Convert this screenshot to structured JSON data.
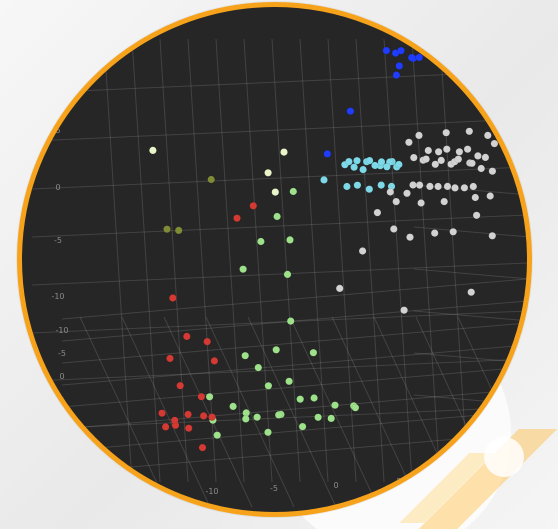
{
  "page": {
    "frame_color": "#f7a21b",
    "plot_background": "#262626"
  },
  "chart_data": {
    "type": "scatter",
    "title": "",
    "xlabel": "",
    "ylabel": "",
    "zlabel": "",
    "grid": true,
    "legend": "none",
    "axis_ticks": {
      "left": [
        "5",
        "0",
        "-5",
        "-10"
      ],
      "lower_left": [
        "-10",
        "-5",
        "0",
        "5"
      ],
      "bottom": [
        "-10",
        "-5",
        "0",
        "5",
        "10"
      ]
    },
    "series": [
      {
        "color": "#9de18b",
        "points": [
          [
            -1.8,
            -4.8,
            1.2
          ],
          [
            -1.2,
            -5.7,
            0.8
          ],
          [
            -0.8,
            -6.0,
            0.4
          ],
          [
            -0.2,
            -5.1,
            1.0
          ],
          [
            0.4,
            -4.6,
            0.5
          ],
          [
            0.9,
            -5.8,
            0.9
          ],
          [
            1.3,
            -5.1,
            0.6
          ],
          [
            1.7,
            -4.4,
            1.4
          ],
          [
            2.2,
            -5.6,
            0.3
          ],
          [
            2.7,
            -4.9,
            0.6
          ],
          [
            3.0,
            -5.9,
            1.1
          ],
          [
            3.6,
            -4.2,
            0.8
          ],
          [
            4.1,
            -5.0,
            0.2
          ],
          [
            4.6,
            -4.5,
            1.0
          ],
          [
            5.2,
            -5.3,
            0.7
          ],
          [
            5.8,
            -4.8,
            0.4
          ],
          [
            6.3,
            -5.4,
            1.2
          ],
          [
            6.9,
            -4.1,
            0.5
          ],
          [
            7.4,
            -5.0,
            0.9
          ],
          [
            1.4,
            -2.6,
            1.8
          ],
          [
            2.6,
            -3.5,
            1.1
          ],
          [
            0.5,
            -3.1,
            1.4
          ],
          [
            -0.1,
            -3.6,
            2.1
          ],
          [
            3.9,
            -3.0,
            1.9
          ],
          [
            2.0,
            -1.9,
            2.5
          ],
          [
            -1.5,
            -0.7,
            3.8
          ],
          [
            -1.0,
            0.7,
            4.1
          ],
          [
            -0.6,
            2.1,
            4.3
          ],
          [
            -0.2,
            3.5,
            4.5
          ],
          [
            0.6,
            1.2,
            3.9
          ],
          [
            1.1,
            -0.3,
            3.4
          ]
        ]
      },
      {
        "color": "#d33a33",
        "points": [
          [
            -4.6,
            -5.2,
            0.8
          ],
          [
            -4.2,
            -5.6,
            0.5
          ],
          [
            -3.8,
            -5.1,
            0.3
          ],
          [
            -3.5,
            -5.9,
            0.9
          ],
          [
            -3.1,
            -4.9,
            0.6
          ],
          [
            -2.8,
            -5.5,
            0.4
          ],
          [
            -2.4,
            -4.6,
            1.1
          ],
          [
            -2.0,
            -5.2,
            0.7
          ],
          [
            -1.6,
            -4.9,
            0.5
          ],
          [
            -3.9,
            -4.2,
            1.3
          ],
          [
            -4.8,
            -3.6,
            2.0
          ],
          [
            -4.1,
            -2.8,
            2.4
          ],
          [
            -3.0,
            -2.4,
            2.0
          ],
          [
            -2.2,
            -3.2,
            1.7
          ],
          [
            -5.5,
            -1.6,
            3.2
          ],
          [
            -2.8,
            1.4,
            4.6
          ],
          [
            -2.0,
            1.9,
            4.8
          ],
          [
            -1.5,
            -6.5,
            0.2
          ]
        ]
      },
      {
        "color": "#1f3cff",
        "points": [
          [
            4.0,
            7.2,
            7.8
          ],
          [
            4.4,
            7.6,
            7.5
          ],
          [
            5.0,
            7.0,
            7.9
          ],
          [
            5.4,
            7.8,
            7.2
          ],
          [
            6.1,
            7.1,
            7.6
          ],
          [
            6.5,
            7.9,
            7.3
          ],
          [
            5.8,
            6.7,
            7.8
          ],
          [
            4.8,
            6.8,
            7.1
          ],
          [
            6.9,
            7.4,
            7.5
          ],
          [
            5.2,
            6.3,
            7.7
          ],
          [
            2.8,
            4.8,
            6.8
          ],
          [
            2.1,
            3.1,
            6.1
          ]
        ]
      },
      {
        "color": "#7dd9e8",
        "points": [
          [
            3.2,
            3.1,
            5.7
          ],
          [
            3.6,
            3.5,
            5.4
          ],
          [
            4.0,
            3.0,
            5.9
          ],
          [
            4.3,
            3.7,
            5.5
          ],
          [
            4.7,
            3.2,
            5.8
          ],
          [
            5.1,
            3.8,
            5.3
          ],
          [
            5.4,
            3.3,
            5.7
          ],
          [
            5.8,
            3.9,
            5.4
          ],
          [
            6.0,
            3.1,
            5.8
          ],
          [
            3.5,
            2.7,
            5.1
          ],
          [
            4.2,
            2.6,
            5.2
          ],
          [
            4.9,
            2.7,
            5.0
          ],
          [
            5.6,
            2.8,
            5.1
          ],
          [
            6.2,
            2.9,
            5.0
          ],
          [
            3.9,
            4.1,
            5.0
          ],
          [
            4.6,
            4.2,
            5.1
          ],
          [
            5.3,
            4.3,
            5.0
          ],
          [
            6.0,
            4.1,
            5.1
          ],
          [
            3.1,
            3.9,
            5.4
          ],
          [
            6.4,
            3.5,
            5.5
          ],
          [
            2.2,
            2.4,
            5.5
          ]
        ]
      },
      {
        "color": "#d2d2d2",
        "points": [
          [
            7.2,
            3.8,
            5.6
          ],
          [
            7.7,
            4.0,
            5.4
          ],
          [
            8.1,
            3.5,
            5.7
          ],
          [
            8.5,
            3.9,
            5.3
          ],
          [
            9.0,
            3.6,
            5.6
          ],
          [
            9.4,
            4.1,
            5.2
          ],
          [
            9.8,
            3.7,
            5.5
          ],
          [
            10.2,
            3.3,
            5.8
          ],
          [
            10.7,
            3.8,
            5.4
          ],
          [
            11.1,
            3.2,
            5.7
          ],
          [
            11.5,
            3.6,
            5.3
          ],
          [
            7.5,
            3.0,
            5.0
          ],
          [
            8.0,
            2.8,
            5.1
          ],
          [
            8.6,
            2.9,
            5.0
          ],
          [
            9.2,
            2.7,
            5.1
          ],
          [
            9.7,
            2.9,
            5.0
          ],
          [
            10.3,
            2.6,
            5.1
          ],
          [
            10.8,
            2.8,
            5.0
          ],
          [
            11.4,
            2.7,
            5.1
          ],
          [
            7.8,
            4.5,
            5.5
          ],
          [
            8.4,
            4.6,
            5.4
          ],
          [
            9.0,
            4.4,
            5.6
          ],
          [
            9.7,
            4.6,
            5.4
          ],
          [
            10.3,
            4.4,
            5.6
          ],
          [
            10.9,
            4.5,
            5.3
          ],
          [
            11.5,
            4.2,
            5.4
          ],
          [
            6.3,
            2.5,
            5.0
          ],
          [
            6.8,
            2.2,
            4.8
          ],
          [
            5.8,
            1.8,
            4.6
          ],
          [
            7.0,
            1.4,
            4.2
          ],
          [
            8.1,
            1.2,
            4.0
          ],
          [
            9.6,
            1.3,
            4.1
          ],
          [
            10.8,
            1.2,
            4.2
          ],
          [
            12.0,
            1.8,
            4.5
          ],
          [
            12.5,
            2.6,
            4.8
          ],
          [
            12.2,
            3.6,
            5.2
          ],
          [
            11.8,
            4.8,
            5.6
          ],
          [
            7.0,
            5.0,
            5.8
          ],
          [
            6.5,
            4.7,
            5.7
          ],
          [
            8.7,
            5.0,
            5.9
          ],
          [
            10.1,
            5.1,
            5.9
          ],
          [
            11.3,
            5.0,
            5.8
          ],
          [
            11.7,
            2.3,
            4.9
          ],
          [
            9.8,
            2.2,
            4.8
          ],
          [
            8.4,
            2.1,
            4.8
          ],
          [
            7.3,
            2.6,
            4.9
          ],
          [
            13.2,
            1.3,
            4.0
          ],
          [
            5.4,
            0.6,
            3.8
          ],
          [
            4.8,
            -1.3,
            3.4
          ],
          [
            9.0,
            -1.7,
            2.8
          ],
          [
            12.8,
            -0.8,
            3.0
          ]
        ]
      },
      {
        "color": "#808b36",
        "points": [
          [
            -7.0,
            1.0,
            4.4
          ],
          [
            -6.4,
            1.3,
            4.2
          ],
          [
            -5.2,
            3.2,
            5.1
          ]
        ]
      },
      {
        "color": "#e9f5c8",
        "points": [
          [
            -9.5,
            4.7,
            5.4
          ],
          [
            -1.0,
            4.0,
            5.7
          ],
          [
            -1.6,
            3.1,
            5.4
          ],
          [
            -0.8,
            2.3,
            5.1
          ]
        ]
      }
    ]
  }
}
